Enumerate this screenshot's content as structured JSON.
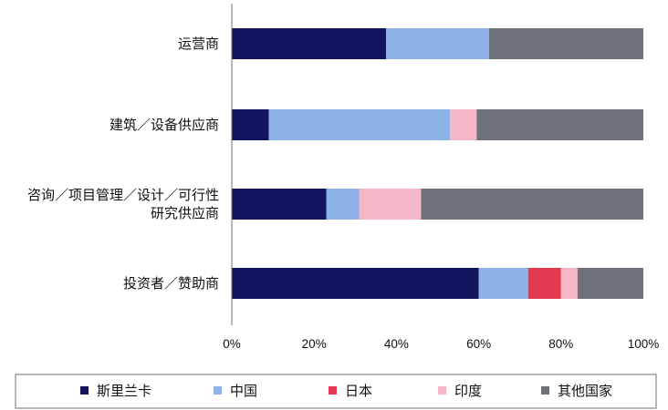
{
  "chart_data": {
    "type": "bar",
    "orientation": "horizontal",
    "stacked": "percent",
    "categories": [
      "运营商",
      "建筑／设备供应商",
      "咨询／项目管理／设计／可行性\n研究供应商",
      "投资者／赞助商"
    ],
    "series": [
      {
        "name": "斯里兰卡",
        "color": "#13145e",
        "values": [
          37.5,
          9,
          23,
          60
        ]
      },
      {
        "name": "中国",
        "color": "#8db3e8",
        "values": [
          25,
          44,
          8,
          12
        ]
      },
      {
        "name": "日本",
        "color": "#e33a52",
        "values": [
          0,
          0,
          0,
          8
        ]
      },
      {
        "name": "印度",
        "color": "#f5b6c8",
        "values": [
          0,
          6.5,
          15,
          4
        ]
      },
      {
        "name": "其他国家",
        "color": "#6d7179",
        "values": [
          37.5,
          40.5,
          54,
          16
        ]
      }
    ],
    "xticks": [
      "0%",
      "20%",
      "40%",
      "60%",
      "80%",
      "100%"
    ],
    "xlim": [
      0,
      100
    ],
    "legend_position": "bottom",
    "grid": false
  }
}
